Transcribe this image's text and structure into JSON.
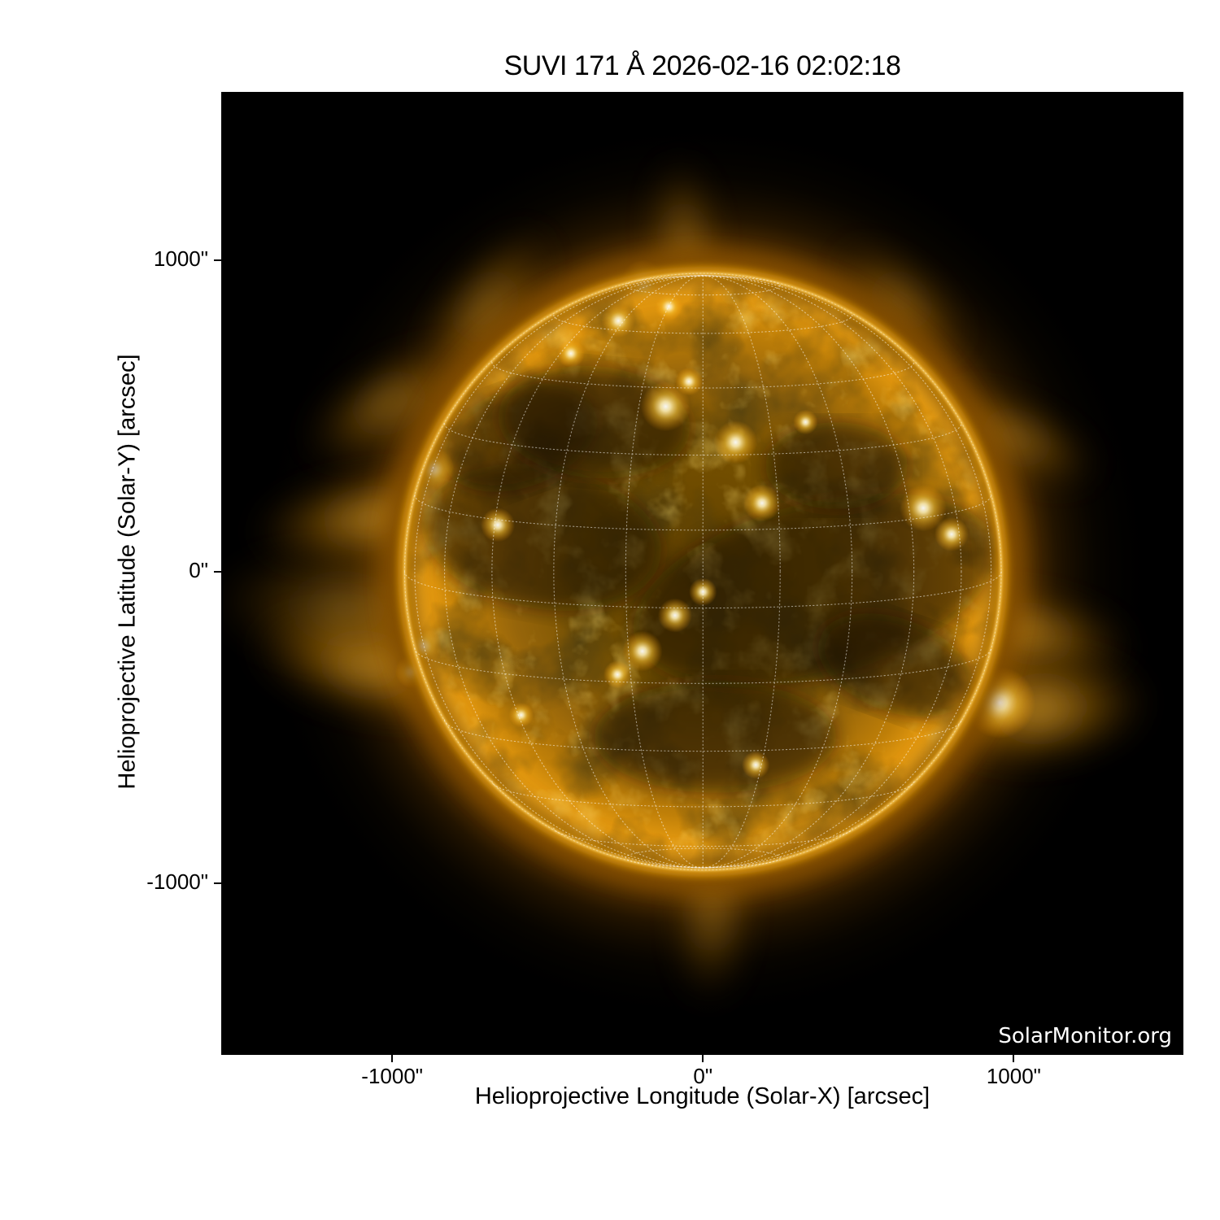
{
  "title": "SUVI 171 Å 2026-02-16 02:02:18",
  "watermark": "SolarMonitor.org",
  "axes": {
    "xlabel": "Helioprojective Longitude (Solar-X) [arcsec]",
    "ylabel": "Helioprojective Latitude (Solar-Y) [arcsec]",
    "xticks": [
      {
        "value": -1000,
        "label": "-1000\""
      },
      {
        "value": 0,
        "label": "0\""
      },
      {
        "value": 1000,
        "label": "1000\""
      }
    ],
    "yticks": [
      {
        "value": 1000,
        "label": "1000\""
      },
      {
        "value": 0,
        "label": "0\""
      },
      {
        "value": -1000,
        "label": "-1000\""
      }
    ],
    "xlim": [
      -1550,
      1546
    ],
    "ylim": [
      -1550,
      1539
    ]
  },
  "chart_data": {
    "type": "heatmap",
    "subtype": "solar-euv-image",
    "title": "SUVI 171 Å 2026-02-16 02:02:18",
    "instrument": "SUVI",
    "wavelength": "171 Å",
    "datetime": "2026-02-16 02:02:18",
    "xlabel": "Helioprojective Longitude (Solar-X) [arcsec]",
    "ylabel": "Helioprojective Latitude (Solar-Y) [arcsec]",
    "xticks": [
      -1000,
      0,
      1000
    ],
    "yticks": [
      -1000,
      0,
      1000
    ],
    "xlim": [
      -1550,
      1546
    ],
    "ylim": [
      -1550,
      1539
    ],
    "background": "#000000",
    "colormap": [
      "#000000",
      "#2a1800",
      "#7b5200",
      "#bf7f08",
      "#ffb825",
      "#ffe9a0",
      "#ffffff"
    ],
    "sun": {
      "center_arcsec": [
        0,
        0
      ],
      "radius_arcsec": 960
    },
    "grid": {
      "kind": "heliographic",
      "spacing_deg": 15,
      "b0_deg": -7,
      "style": "dotted-white"
    },
    "features": {
      "bright_regions": [
        [
          -193,
          930,
          70
        ],
        [
          -110,
          850,
          45
        ],
        [
          -272,
          805,
          55
        ],
        [
          -425,
          700,
          45
        ],
        [
          -120,
          530,
          80
        ],
        [
          105,
          415,
          70
        ],
        [
          190,
          220,
          60
        ],
        [
          -660,
          150,
          55
        ],
        [
          -870,
          330,
          70
        ],
        [
          -905,
          -240,
          65
        ],
        [
          -935,
          -320,
          55
        ],
        [
          -195,
          -255,
          65
        ],
        [
          -90,
          -140,
          55
        ],
        [
          709,
          204,
          75
        ],
        [
          800,
          120,
          55
        ],
        [
          955,
          -420,
          115
        ],
        [
          170,
          -620,
          45
        ],
        [
          -275,
          -330,
          45
        ],
        [
          -45,
          610,
          45
        ],
        [
          330,
          480,
          40
        ],
        [
          0,
          -65,
          45
        ],
        [
          -585,
          -460,
          40
        ]
      ],
      "dark_regions": [
        [
          360,
          -60,
          600,
          280,
          -15
        ],
        [
          -520,
          110,
          390,
          230,
          10
        ],
        [
          40,
          -530,
          390,
          180,
          0
        ],
        [
          -590,
          430,
          260,
          160,
          -20
        ],
        [
          -350,
          480,
          310,
          180,
          5
        ],
        [
          430,
          340,
          230,
          140,
          0
        ],
        [
          620,
          -300,
          260,
          150,
          20
        ]
      ],
      "streamers": [
        [
          -1075,
          170,
          390,
          140,
          -8,
          0.75
        ],
        [
          -1080,
          -300,
          390,
          160,
          12,
          0.8
        ],
        [
          -1010,
          540,
          310,
          120,
          -30,
          0.6
        ],
        [
          1060,
          -200,
          340,
          130,
          10,
          0.7
        ],
        [
          1085,
          -440,
          360,
          180,
          -5,
          0.85
        ],
        [
          1010,
          430,
          290,
          105,
          25,
          0.6
        ],
        [
          -700,
          850,
          310,
          120,
          -52,
          0.55
        ],
        [
          -60,
          1075,
          260,
          105,
          85,
          0.5
        ],
        [
          30,
          -1100,
          290,
          120,
          93,
          0.5
        ],
        [
          640,
          870,
          260,
          100,
          40,
          0.5
        ],
        [
          -1150,
          -120,
          450,
          200,
          5,
          0.45
        ]
      ]
    }
  },
  "colors": {
    "figure_bg": "#ffffff",
    "plot_bg": "#000000",
    "text": "#000000",
    "watermark_text": "#ffffff",
    "limb_gold": "#ffb41e",
    "corona_orange": "#c87a00",
    "grid_dots": "#ffffff"
  }
}
